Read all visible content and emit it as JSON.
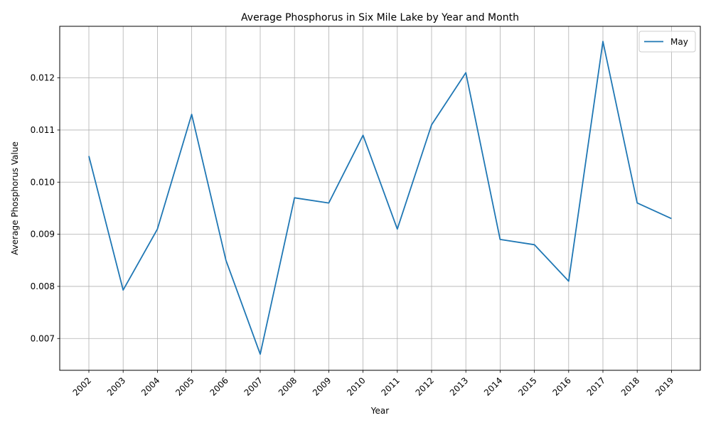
{
  "chart_data": {
    "type": "line",
    "title": "Average Phosphorus in Six Mile Lake by Year and Month",
    "xlabel": "Year",
    "ylabel": "Average Phosphorus Value",
    "categories": [
      "2002",
      "2003",
      "2004",
      "2005",
      "2006",
      "2007",
      "2008",
      "2009",
      "2010",
      "2011",
      "2012",
      "2013",
      "2014",
      "2015",
      "2016",
      "2017",
      "2018",
      "2019"
    ],
    "series": [
      {
        "name": "May",
        "color": "#1f77b4",
        "values": [
          0.0105,
          0.00793,
          0.0091,
          0.0113,
          0.0085,
          0.0067,
          0.0097,
          0.0096,
          0.0109,
          0.0091,
          0.0111,
          0.0121,
          0.0089,
          0.0088,
          0.0081,
          0.0127,
          0.0096,
          0.0093
        ]
      }
    ],
    "y_ticks": [
      "0.007",
      "0.008",
      "0.009",
      "0.010",
      "0.011",
      "0.012"
    ],
    "ylim": [
      0.00639,
      0.01299
    ],
    "grid": true,
    "legend_position": "upper right"
  }
}
